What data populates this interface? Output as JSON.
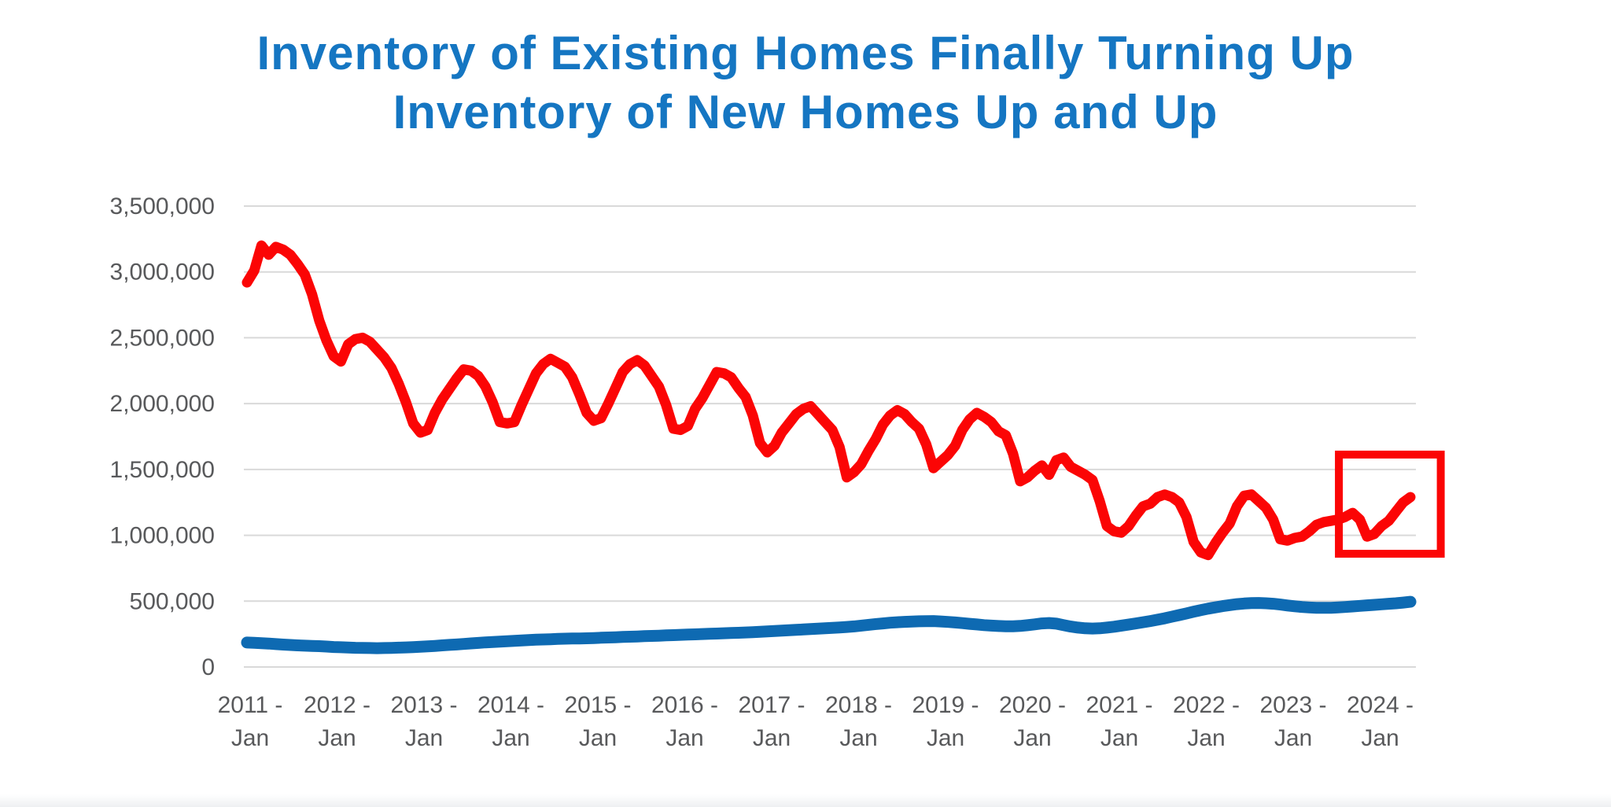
{
  "title": {
    "line1": "Inventory of Existing Homes Finally Turning Up",
    "line2": "Inventory of New Homes Up and Up",
    "color": "#1576c2"
  },
  "chart_data": {
    "type": "line",
    "title": "Inventory of Existing Homes Finally Turning Up / Inventory of New Homes Up and Up",
    "frequency": "monthly",
    "x_start": "2011-01",
    "x_end": "2024-06",
    "ylim": [
      0,
      3500000
    ],
    "grid": true,
    "legend_position": "none",
    "colors": {
      "existing_line": "#fb0505",
      "new_line": "#0e6ab2",
      "gridline": "#d9d9d9",
      "axis_text": "#58595b",
      "annotation_box": "#fb0505"
    },
    "y_ticks": [
      {
        "value": 0,
        "label": "0"
      },
      {
        "value": 500000,
        "label": "500,000"
      },
      {
        "value": 1000000,
        "label": "1,000,000"
      },
      {
        "value": 1500000,
        "label": "1,500,000"
      },
      {
        "value": 2000000,
        "label": "2,000,000"
      },
      {
        "value": 2500000,
        "label": "2,500,000"
      },
      {
        "value": 3000000,
        "label": "3,000,000"
      },
      {
        "value": 3500000,
        "label": "3,500,000"
      }
    ],
    "x_ticks": [
      {
        "line1": "2011 -",
        "line2": "Jan"
      },
      {
        "line1": "2012 -",
        "line2": "Jan"
      },
      {
        "line1": "2013 -",
        "line2": "Jan"
      },
      {
        "line1": "2014 -",
        "line2": "Jan"
      },
      {
        "line1": "2015 -",
        "line2": "Jan"
      },
      {
        "line1": "2016 -",
        "line2": "Jan"
      },
      {
        "line1": "2017 -",
        "line2": "Jan"
      },
      {
        "line1": "2018 -",
        "line2": "Jan"
      },
      {
        "line1": "2019 -",
        "line2": "Jan"
      },
      {
        "line1": "2020 -",
        "line2": "Jan"
      },
      {
        "line1": "2021 -",
        "line2": "Jan"
      },
      {
        "line1": "2022 -",
        "line2": "Jan"
      },
      {
        "line1": "2023 -",
        "line2": "Jan"
      },
      {
        "line1": "2024 -",
        "line2": "Jan"
      }
    ],
    "series": [
      {
        "name": "Inventory of existing homes",
        "color": "#fb0505",
        "stroke_width": 13,
        "values": [
          2920000,
          3010000,
          3200000,
          3130000,
          3190000,
          3170000,
          3130000,
          3060000,
          2980000,
          2830000,
          2630000,
          2480000,
          2360000,
          2320000,
          2450000,
          2490000,
          2500000,
          2470000,
          2410000,
          2350000,
          2270000,
          2150000,
          2010000,
          1850000,
          1780000,
          1800000,
          1930000,
          2030000,
          2110000,
          2190000,
          2260000,
          2250000,
          2210000,
          2130000,
          2010000,
          1860000,
          1850000,
          1860000,
          1990000,
          2110000,
          2230000,
          2300000,
          2340000,
          2310000,
          2280000,
          2200000,
          2070000,
          1930000,
          1870000,
          1890000,
          2000000,
          2120000,
          2240000,
          2300000,
          2330000,
          2290000,
          2210000,
          2130000,
          1990000,
          1810000,
          1800000,
          1830000,
          1960000,
          2040000,
          2140000,
          2240000,
          2230000,
          2200000,
          2120000,
          2050000,
          1910000,
          1700000,
          1630000,
          1680000,
          1780000,
          1850000,
          1920000,
          1960000,
          1980000,
          1920000,
          1860000,
          1800000,
          1670000,
          1440000,
          1480000,
          1540000,
          1640000,
          1730000,
          1840000,
          1910000,
          1950000,
          1920000,
          1860000,
          1810000,
          1690000,
          1510000,
          1560000,
          1610000,
          1680000,
          1800000,
          1880000,
          1930000,
          1900000,
          1860000,
          1790000,
          1760000,
          1620000,
          1410000,
          1440000,
          1490000,
          1530000,
          1460000,
          1570000,
          1590000,
          1520000,
          1490000,
          1460000,
          1420000,
          1260000,
          1070000,
          1030000,
          1020000,
          1070000,
          1150000,
          1220000,
          1240000,
          1290000,
          1310000,
          1290000,
          1250000,
          1140000,
          950000,
          870000,
          850000,
          940000,
          1020000,
          1090000,
          1220000,
          1300000,
          1310000,
          1260000,
          1210000,
          1120000,
          970000,
          960000,
          980000,
          990000,
          1030000,
          1080000,
          1100000,
          1110000,
          1120000,
          1140000,
          1170000,
          1120000,
          990000,
          1010000,
          1070000,
          1110000,
          1180000,
          1250000,
          1290000
        ]
      },
      {
        "name": "Inventory of new homes",
        "color": "#0e6ab2",
        "stroke_width": 15,
        "values": [
          186000,
          184000,
          181000,
          178000,
          174000,
          170000,
          167000,
          164000,
          162000,
          160000,
          158000,
          155000,
          152000,
          150000,
          148000,
          146000,
          145000,
          144000,
          143000,
          144000,
          145000,
          147000,
          149000,
          151000,
          154000,
          157000,
          160000,
          164000,
          168000,
          171000,
          175000,
          179000,
          183000,
          187000,
          190000,
          193000,
          196000,
          199000,
          202000,
          205000,
          207000,
          209000,
          211000,
          213000,
          215000,
          216000,
          217000,
          218000,
          220000,
          222000,
          224000,
          226000,
          228000,
          230000,
          232000,
          234000,
          236000,
          238000,
          240000,
          242000,
          244000,
          246000,
          248000,
          250000,
          252000,
          254000,
          256000,
          258000,
          260000,
          262000,
          264000,
          267000,
          270000,
          273000,
          276000,
          279000,
          282000,
          285000,
          288000,
          291000,
          294000,
          297000,
          300000,
          304000,
          308000,
          314000,
          320000,
          326000,
          331000,
          336000,
          340000,
          343000,
          345000,
          347000,
          348000,
          349000,
          346000,
          342000,
          338000,
          333000,
          328000,
          323000,
          318000,
          314000,
          311000,
          309000,
          309000,
          312000,
          317000,
          324000,
          331000,
          334000,
          329000,
          318000,
          307000,
          299000,
          294000,
          292000,
          294000,
          299000,
          306000,
          314000,
          322000,
          331000,
          340000,
          349000,
          359000,
          370000,
          382000,
          394000,
          407000,
          420000,
          432000,
          443000,
          453000,
          462000,
          470000,
          477000,
          482000,
          485000,
          486000,
          484000,
          480000,
          474000,
          467000,
          461000,
          456000,
          452000,
          450000,
          449000,
          450000,
          452000,
          456000,
          460000,
          464000,
          468000,
          472000,
          476000,
          480000,
          484000,
          489000,
          495000
        ]
      }
    ],
    "annotation": {
      "type": "box",
      "color": "#fb0505",
      "stroke_width": 10,
      "note": "highlights recent upturn in existing-home inventory",
      "x0_month_index": 151.1,
      "x1_month_index": 165.2,
      "y0_value": 860000,
      "y1_value": 1613000
    }
  }
}
